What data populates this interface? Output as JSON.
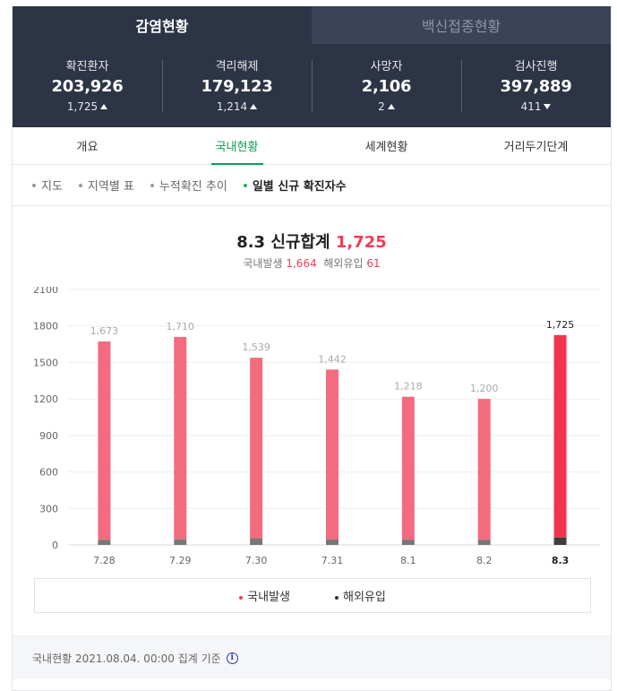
{
  "tabs": [
    {
      "label": "감염현황",
      "active": true
    },
    {
      "label": "백신접종현황",
      "active": false
    }
  ],
  "stats": [
    {
      "label": "확진환자",
      "value": "203,926",
      "change": "1,725",
      "direction": "up"
    },
    {
      "label": "격리해제",
      "value": "179,123",
      "change": "1,214",
      "direction": "up"
    },
    {
      "label": "사망자",
      "value": "2,106",
      "change": "2",
      "direction": "up"
    },
    {
      "label": "검사진행",
      "value": "397,889",
      "change": "411",
      "direction": "down"
    }
  ],
  "subnav": [
    {
      "label": "개요",
      "active": false
    },
    {
      "label": "국내현황",
      "active": true
    },
    {
      "label": "세계현황",
      "active": false
    },
    {
      "label": "거리두기단계",
      "active": false
    }
  ],
  "filters": [
    {
      "label": "지도",
      "active": false
    },
    {
      "label": "지역별 표",
      "active": false
    },
    {
      "label": "누적확진 추이",
      "active": false
    },
    {
      "label": "일별 신규 확진자수",
      "active": true
    }
  ],
  "summary": {
    "title_prefix": "8.3 신규합계",
    "title_value": "1,725",
    "domestic_label": "국내발생",
    "domestic_value": "1,664",
    "overseas_label": "해외유입",
    "overseas_value": "61"
  },
  "chart_data": {
    "type": "bar",
    "stacked": true,
    "categories": [
      "7.28",
      "7.29",
      "7.30",
      "7.31",
      "8.1",
      "8.2",
      "8.3"
    ],
    "series": [
      {
        "name": "국내발생",
        "values": [
          1631,
          1664,
          1484,
          1398,
          1175,
          1158,
          1664
        ],
        "color": "#f46b7f"
      },
      {
        "name": "해외유입",
        "values": [
          42,
          46,
          55,
          44,
          43,
          42,
          61
        ],
        "color": "#777777"
      }
    ],
    "totals": [
      1673,
      1710,
      1539,
      1442,
      1218,
      1200,
      1725
    ],
    "total_labels": [
      "1,673",
      "1,710",
      "1,539",
      "1,442",
      "1,218",
      "1,200",
      "1,725"
    ],
    "highlight_index": 6,
    "highlight_colors": {
      "domestic": "#f0344e",
      "overseas": "#3d3d3d"
    },
    "yticks": [
      0,
      300,
      600,
      900,
      1200,
      1500,
      1800,
      2100
    ],
    "ylim": [
      0,
      2100
    ],
    "grid": true,
    "legend_position": "bottom"
  },
  "legend": [
    {
      "label": "국내발생",
      "color": "#ef3e55"
    },
    {
      "label": "해외유입",
      "color": "#333333"
    }
  ],
  "footer": {
    "text": "국내현황 2021.08.04. 00:00 집계 기준",
    "icon": "info-icon"
  }
}
